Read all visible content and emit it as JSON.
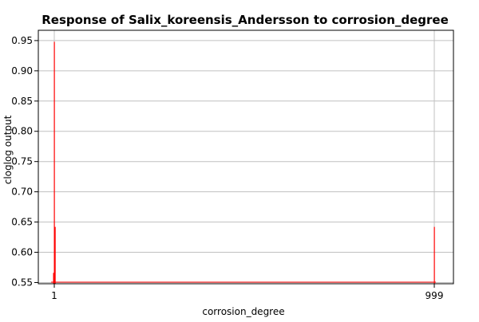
{
  "chart_data": {
    "type": "bar",
    "title": "Response of Salix_koreensis_Andersson to corrosion_degree",
    "xlabel": "corrosion_degree",
    "ylabel": "cloglog output",
    "x_ticks": [
      "1",
      "999"
    ],
    "y_ticks": [
      0.55,
      0.6,
      0.65,
      0.7,
      0.75,
      0.8,
      0.85,
      0.9,
      0.95
    ],
    "ylim": [
      0.548,
      0.967
    ],
    "grid": true,
    "bars": [
      {
        "x": "1",
        "value": 0.566
      },
      {
        "x": "1",
        "value": 0.948
      },
      {
        "x": "1",
        "value": 0.642
      },
      {
        "x": "999",
        "value": 0.642
      }
    ],
    "colors": {
      "bar": "#ff0000",
      "grid": "#c0c0c0",
      "axis": "#000000",
      "background": "#ffffff"
    }
  }
}
